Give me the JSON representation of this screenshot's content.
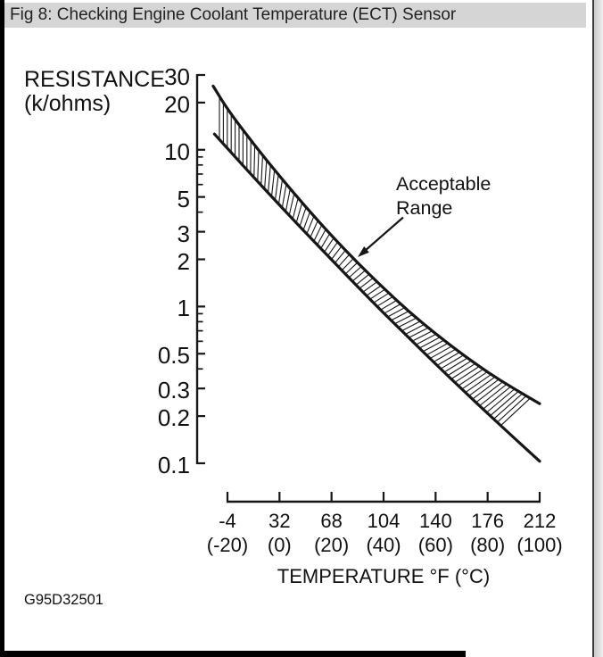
{
  "window": {
    "title": "Fig 8: Checking Engine Coolant Temperature (ECT) Sensor"
  },
  "footer": {
    "figure_code": "G95D32501"
  },
  "colors": {
    "ink": "#161616",
    "title_bar_bg": "#d5d5d5",
    "page_bg": "#ffffff"
  },
  "chart_data": {
    "type": "line",
    "title": "ECT sensor resistance vs temperature with acceptable range band",
    "x_axis": {
      "label": "TEMPERATURE °F (°C)",
      "ticks": [
        {
          "f": "-4",
          "c": "(-20)"
        },
        {
          "f": "32",
          "c": "(0)"
        },
        {
          "f": "68",
          "c": "(20)"
        },
        {
          "f": "104",
          "c": "(40)"
        },
        {
          "f": "140",
          "c": "(60)"
        },
        {
          "f": "176",
          "c": "(80)"
        },
        {
          "f": "212",
          "c": "(100)"
        }
      ],
      "range_c": [
        -20,
        100
      ]
    },
    "y_axis": {
      "label": "RESISTANCE",
      "label_units": "(k/ohms)",
      "scale": "log",
      "range": [
        0.1,
        30
      ],
      "major_ticks": [
        30,
        20,
        10,
        5,
        3,
        2,
        1,
        0.5,
        0.3,
        0.2,
        0.1
      ],
      "minor_ticks": [
        9,
        8,
        7,
        6,
        4,
        0.9,
        0.8,
        0.7,
        0.6,
        0.4
      ]
    },
    "annotation": {
      "line1": "Acceptable",
      "line2": "Range"
    },
    "series": [
      {
        "name": "upper_limit_kohm",
        "temp_c": [
          -25.5,
          -20,
          -10,
          0,
          10,
          20,
          30,
          40,
          50,
          60,
          70,
          80,
          90,
          100
        ],
        "values": [
          25.5,
          18.1,
          10.9,
          6.8,
          4.33,
          2.83,
          1.9,
          1.31,
          0.92,
          0.67,
          0.5,
          0.38,
          0.3,
          0.24
        ]
      },
      {
        "name": "lower_limit_kohm",
        "temp_c": [
          -25,
          -20,
          -10,
          0,
          10,
          20,
          30,
          40,
          50,
          60,
          70,
          80,
          90,
          100
        ],
        "values": [
          12.6,
          10.2,
          6.7,
          4.44,
          2.96,
          1.99,
          1.34,
          0.91,
          0.625,
          0.43,
          0.298,
          0.208,
          0.146,
          0.103
        ]
      }
    ]
  }
}
